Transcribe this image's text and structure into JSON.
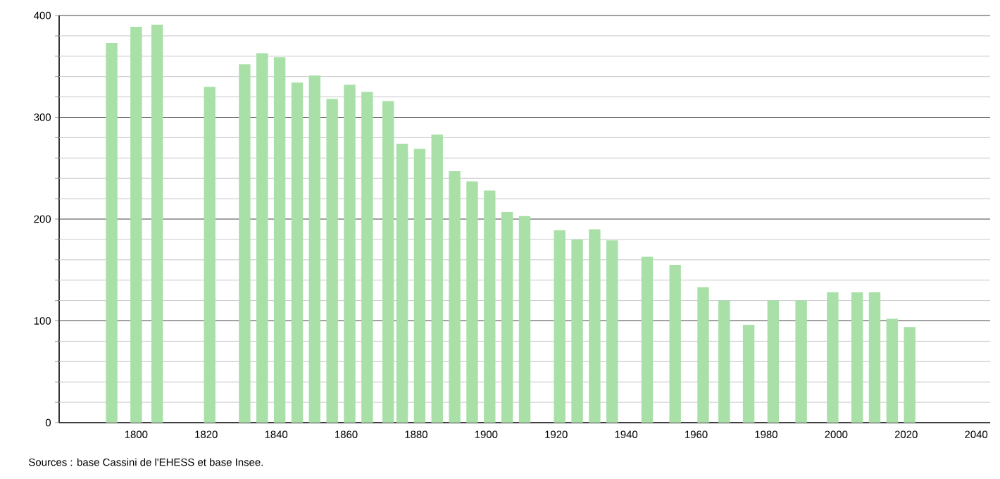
{
  "chart_data": {
    "type": "bar",
    "x": [
      1793,
      1800,
      1806,
      1821,
      1831,
      1836,
      1841,
      1846,
      1851,
      1856,
      1861,
      1866,
      1872,
      1876,
      1881,
      1886,
      1891,
      1896,
      1901,
      1906,
      1911,
      1921,
      1926,
      1931,
      1936,
      1946,
      1954,
      1962,
      1968,
      1975,
      1982,
      1990,
      1999,
      2006,
      2011,
      2016,
      2021
    ],
    "values": [
      373,
      389,
      391,
      330,
      352,
      363,
      359,
      334,
      341,
      318,
      332,
      325,
      316,
      274,
      269,
      283,
      247,
      237,
      228,
      207,
      203,
      189,
      180,
      190,
      179,
      163,
      155,
      133,
      120,
      96,
      120,
      120,
      128,
      128,
      128,
      102,
      94
    ],
    "color": "#a8e0a8",
    "xlim": [
      1778,
      2044
    ],
    "ylim": [
      0,
      400
    ],
    "xticks": [
      1800,
      1820,
      1840,
      1860,
      1880,
      1900,
      1920,
      1940,
      1960,
      1980,
      2000,
      2020,
      2040
    ],
    "yticks": [
      0,
      {
        "value": 20,
        "label": null
      },
      {
        "value": 40,
        "label": null
      },
      {
        "value": 60,
        "label": null
      },
      {
        "value": 80,
        "label": null
      },
      100,
      {
        "value": 120,
        "label": null
      },
      {
        "value": 140,
        "label": null
      },
      {
        "value": 160,
        "label": null
      },
      {
        "value": 180,
        "label": null
      },
      200,
      {
        "value": 220,
        "label": null
      },
      {
        "value": 240,
        "label": null
      },
      {
        "value": 260,
        "label": null
      },
      {
        "value": 280,
        "label": null
      },
      300,
      {
        "value": 320,
        "label": null
      },
      {
        "value": 340,
        "label": null
      },
      {
        "value": 360,
        "label": null
      },
      {
        "value": 380,
        "label": null
      },
      400
    ],
    "grid": "y",
    "annotations": [
      "Sources : base Cassini de l'EHESS et base Insee."
    ]
  }
}
